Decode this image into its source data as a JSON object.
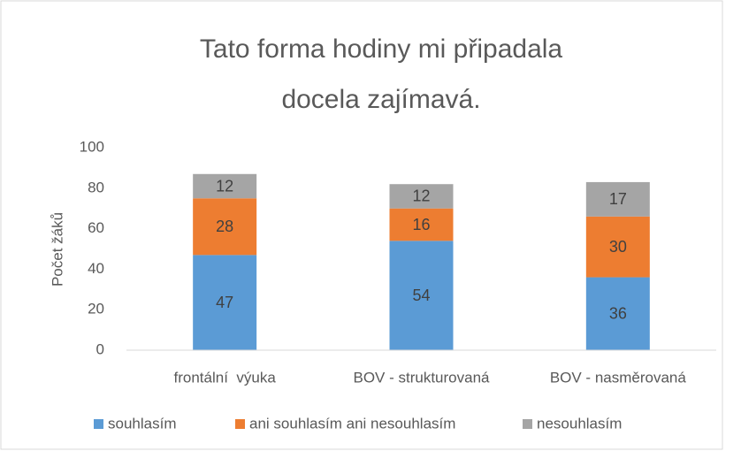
{
  "chart_data": {
    "type": "stacked_bar",
    "title": [
      "Tato forma hodiny mi připadala",
      "docela zajímavá."
    ],
    "y_label": "Počet žáků",
    "categories": [
      "frontální  výuka",
      "BOV - strukturovaná",
      "BOV - nasměrovaná"
    ],
    "series": [
      {
        "name": "souhlasím",
        "color": "#5b9bd5",
        "values": [
          47,
          54,
          36
        ]
      },
      {
        "name": "ani souhlasím ani nesouhlasím",
        "color": "#ed7d31",
        "values": [
          28,
          16,
          30
        ]
      },
      {
        "name": "nesouhlasím",
        "color": "#a5a5a5",
        "values": [
          12,
          12,
          17
        ]
      }
    ],
    "ylim": [
      0,
      100
    ],
    "yticks": [
      0,
      20,
      40,
      60,
      80,
      100
    ],
    "grid": false,
    "legend": "bottom"
  }
}
